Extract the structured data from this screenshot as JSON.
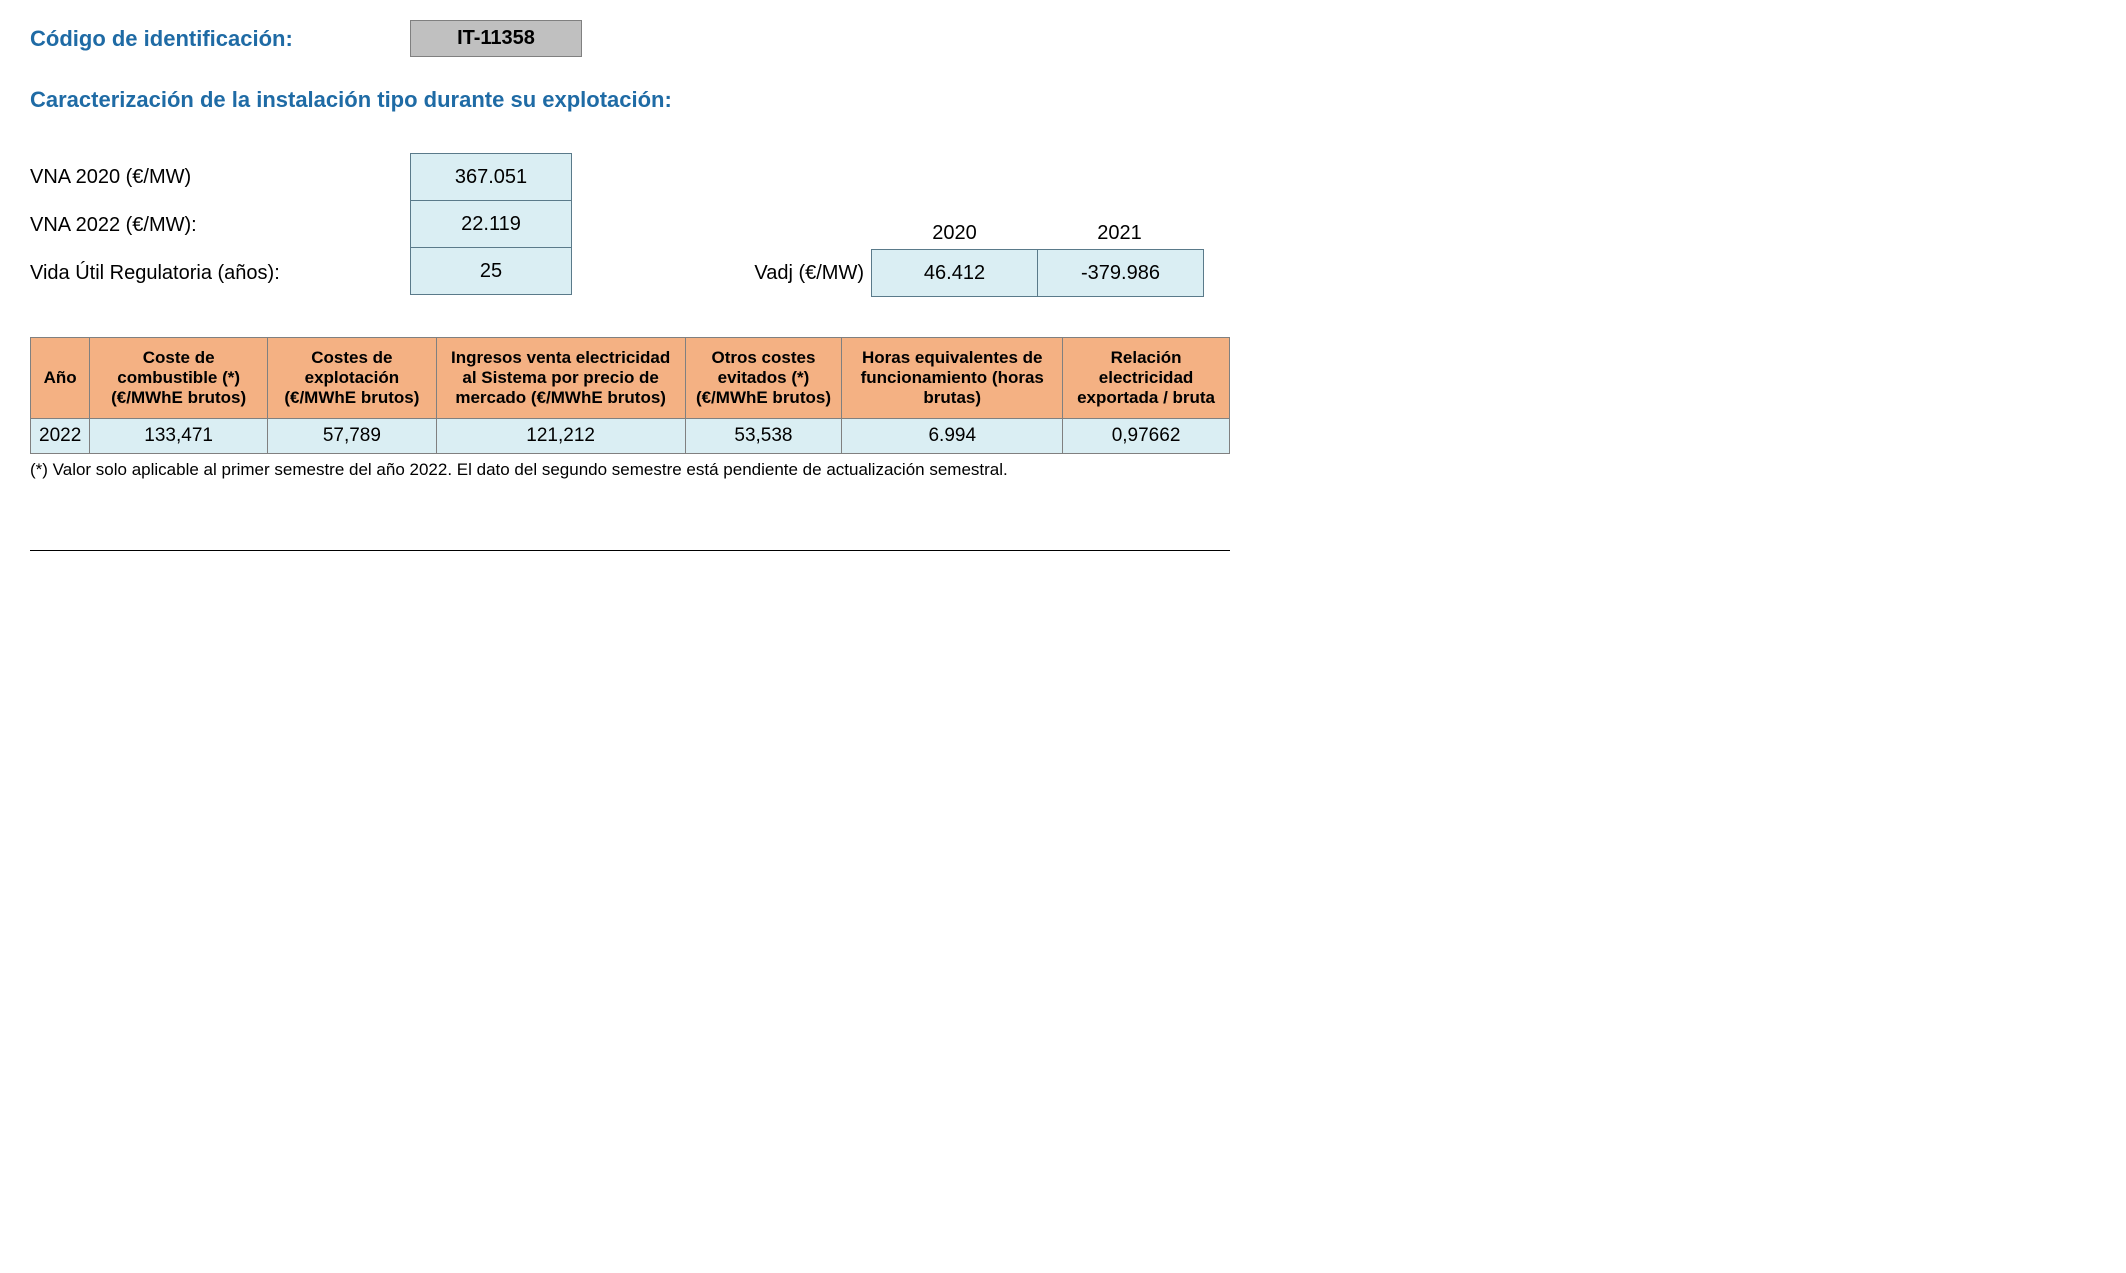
{
  "header": {
    "code_label": "Código de identificación:",
    "code_value": "IT-11358"
  },
  "section_title": "Caracterización de la instalación tipo durante su explotación:",
  "params": {
    "rows": [
      {
        "label": "VNA 2020 (€/MW)",
        "value": "367.051"
      },
      {
        "label": "VNA 2022 (€/MW):",
        "value": "22.119"
      },
      {
        "label": "Vida Útil Regulatoria (años):",
        "value": "25"
      }
    ]
  },
  "vadj": {
    "label": "Vadj (€/MW)",
    "years": [
      "2020",
      "2021"
    ],
    "values": [
      "46.412",
      "-379.986"
    ]
  },
  "table": {
    "header_bg": "#f4b183",
    "row_bg": "#daeef3",
    "border_color": "#808080",
    "columns": [
      "Año",
      "Coste de combustible (*) (€/MWhE brutos)",
      "Costes de explotación (€/MWhE brutos)",
      "Ingresos venta electricidad al Sistema por precio de mercado (€/MWhE brutos)",
      "Otros costes evitados (*) (€/MWhE brutos)",
      "Horas equivalentes de funcionamiento (horas brutas)",
      "Relación electricidad exportada / bruta"
    ],
    "rows": [
      [
        "2022",
        "133,471",
        "57,789",
        "121,212",
        "53,538",
        "6.994",
        "0,97662"
      ]
    ]
  },
  "footnote": "(*) Valor solo aplicable al primer semestre del año 2022. El dato del segundo semestre está pendiente de actualización semestral.",
  "colors": {
    "title_color": "#1f6ba5",
    "code_box_bg": "#c0c0c0",
    "param_cell_bg": "#daeef3",
    "param_cell_border": "#5a7a8a"
  }
}
